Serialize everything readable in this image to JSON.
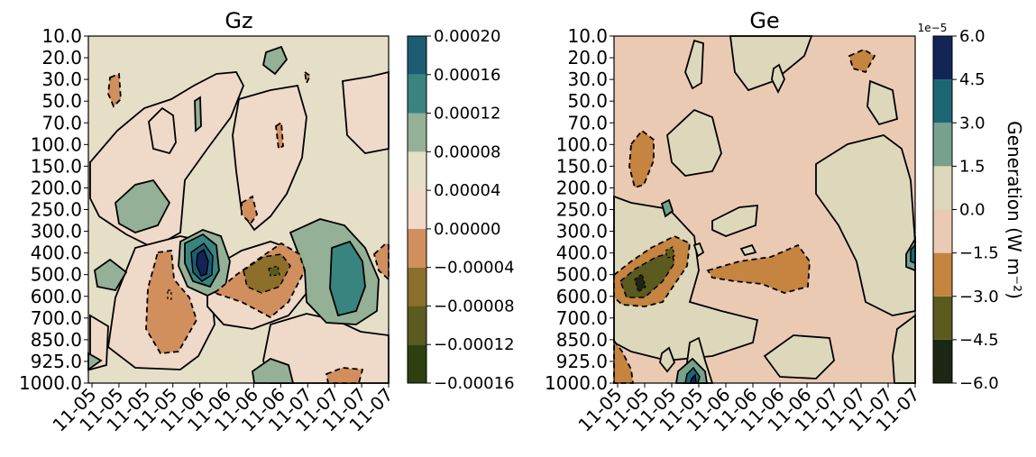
{
  "chart_data": [
    {
      "type": "contour",
      "title": "Gz",
      "y_tick_labels": [
        "10.0",
        "20.0",
        "30.0",
        "50.0",
        "70.0",
        "100.0",
        "150.0",
        "200.0",
        "250.0",
        "300.0",
        "400.0",
        "500.0",
        "600.0",
        "700.0",
        "850.0",
        "925.0",
        "1000.0"
      ],
      "x_tick_labels": [
        "11-05",
        "11-05",
        "11-05",
        "11-05",
        "11-06",
        "11-06",
        "11-06",
        "11-06",
        "11-07",
        "11-07",
        "11-07",
        "11-07"
      ],
      "colorbar": {
        "levels": [
          -0.00016,
          -0.00012,
          -8e-05,
          -4e-05,
          0.0,
          4e-05,
          8e-05,
          0.00012,
          0.00016,
          0.0002
        ],
        "tick_labels": [
          "−0.00016",
          "−0.00012",
          "−0.00008",
          "−0.00004",
          "0.00000",
          "0.00004",
          "0.00008",
          "0.00012",
          "0.00016",
          "0.00020"
        ],
        "colors": [
          "#2e3f10",
          "#5b5a1f",
          "#8b6f2a",
          "#d08f5c",
          "#efd9c9",
          "#e5dfc7",
          "#94b096",
          "#3a847f",
          "#1d5d74",
          "#132456"
        ]
      }
    },
    {
      "type": "contour",
      "title": "Ge",
      "y_tick_labels": [
        "10.0",
        "20.0",
        "30.0",
        "50.0",
        "70.0",
        "100.0",
        "150.0",
        "200.0",
        "250.0",
        "300.0",
        "400.0",
        "500.0",
        "600.0",
        "700.0",
        "850.0",
        "925.0",
        "1000.0"
      ],
      "x_tick_labels": [
        "11-05",
        "11-05",
        "11-05",
        "11-05",
        "11-06",
        "11-06",
        "11-06",
        "11-06",
        "11-07",
        "11-07",
        "11-07",
        "11-07"
      ],
      "colorbar": {
        "label": "Generation  (W m⁻²)",
        "offset_text": "1e−5",
        "levels": [
          -6.0,
          -4.5,
          -3.0,
          -1.5,
          0.0,
          1.5,
          3.0,
          4.5,
          6.0
        ],
        "tick_labels": [
          "−6.0",
          "−4.5",
          "−3.0",
          "−1.5",
          "0.0",
          "1.5",
          "3.0",
          "4.5",
          "6.0"
        ],
        "colors": [
          "#1c2612",
          "#5b5a1f",
          "#c5843f",
          "#ebcab4",
          "#ddd8bb",
          "#77a08d",
          "#1d6775",
          "#132456"
        ]
      }
    }
  ]
}
